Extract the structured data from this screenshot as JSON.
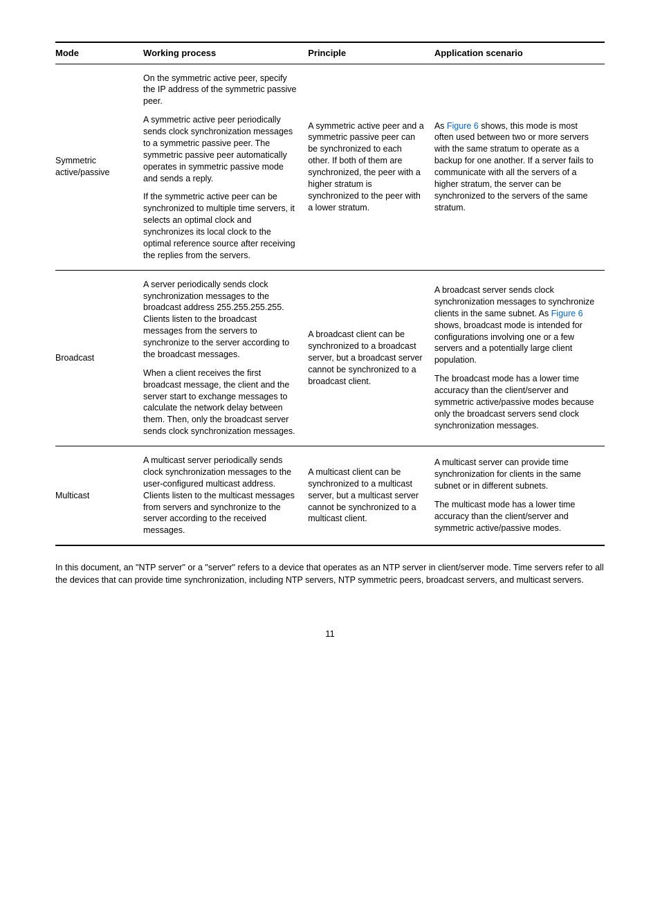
{
  "table": {
    "headers": [
      "Mode",
      "Working process",
      "Principle",
      "Application scenario"
    ],
    "rows": [
      {
        "mode": "Symmetric active/passive",
        "process": [
          "On the symmetric active peer, specify the IP address of the symmetric passive peer.",
          "A symmetric active peer periodically sends clock synchronization messages to a symmetric passive peer. The symmetric passive peer automatically operates in symmetric passive mode and sends a reply.",
          "If the symmetric active peer can be synchronized to multiple time servers, it selects an optimal clock and synchronizes its local clock to the optimal reference source after receiving the replies from the servers."
        ],
        "principle": [
          "A symmetric active peer and a symmetric passive peer can be synchronized to each other. If both of them are synchronized, the peer with a higher stratum is synchronized to the peer with a lower stratum."
        ],
        "scenario": [
          {
            "prefix": "As ",
            "figref": "Figure 6",
            "suffix": " shows, this mode is most often used between two or more servers with the same stratum to operate as a backup for one another. If a server fails to communicate with all the servers of a higher stratum, the server can be synchronized to the servers of the same stratum."
          }
        ]
      },
      {
        "mode": "Broadcast",
        "process": [
          "A server periodically sends clock synchronization messages to the broadcast address 255.255.255.255. Clients listen to the broadcast messages from the servers to synchronize to the server according to the broadcast messages.",
          "When a client receives the first broadcast message, the client and the server start to exchange messages to calculate the network delay between them. Then, only the broadcast server sends clock synchronization messages."
        ],
        "principle": [
          "A broadcast client can be synchronized to a broadcast server, but a broadcast server cannot be synchronized to a broadcast client."
        ],
        "scenario": [
          {
            "plain_prefix": "A broadcast server sends clock synchronization messages to synchronize clients in the same subnet. As ",
            "figref": "Figure 6",
            "suffix": " shows, broadcast mode is intended for configurations involving one or a few servers and a potentially large client population."
          },
          {
            "plain": "The broadcast mode has a lower time accuracy than the client/server and symmetric active/passive modes because only the broadcast servers send clock synchronization messages."
          }
        ]
      },
      {
        "mode": "Multicast",
        "process": [
          "A multicast server periodically sends clock synchronization messages to the user-configured multicast address. Clients listen to the multicast messages from servers and synchronize to the server according to the received messages."
        ],
        "principle": [
          "A multicast client can be synchronized to a multicast server, but a multicast server cannot be synchronized to a multicast client."
        ],
        "scenario": [
          {
            "plain": "A multicast server can provide time synchronization for clients in the same subnet or in different subnets."
          },
          {
            "plain": "The multicast mode has a lower time accuracy than the client/server and symmetric active/passive modes."
          }
        ]
      }
    ]
  },
  "body_paragraph": "In this document, an \"NTP server\" or a \"server\" refers to a device that operates as an NTP server in client/server mode. Time servers refer to all the devices that can provide time synchronization, including NTP servers, NTP symmetric peers, broadcast servers, and multicast servers.",
  "page_number": "11",
  "link_color": "#0066cc"
}
